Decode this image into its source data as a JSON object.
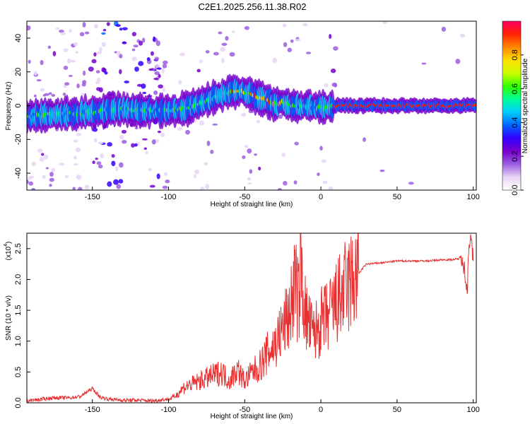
{
  "figure": {
    "title": "C2E1.2025.256.11.38.R02"
  },
  "chart_data": [
    {
      "type": "heatmap",
      "xlabel": "Height of straight line (km)",
      "ylabel": "Frequency (Hz)",
      "xlim": [
        -193,
        102
      ],
      "ylim": [
        -50,
        50
      ],
      "xticks": [
        -150,
        -100,
        -50,
        0,
        50,
        100
      ],
      "yticks": [
        -40,
        -20,
        0,
        20,
        40
      ],
      "colorbar": {
        "label": "Normalized spectral amplitude",
        "range": [
          0,
          1
        ],
        "ticks": [
          "0.0",
          "0.2",
          "0.4",
          "0.6",
          "0.8"
        ],
        "colors": [
          "#ffffff",
          "#e8d5f5",
          "#9b5de0",
          "#7700cc",
          "#3300ff",
          "#0066ff",
          "#00ccff",
          "#00ff99",
          "#33ff00",
          "#ccff00",
          "#ffdd00",
          "#ff8800",
          "#ff2200",
          "#ff0066"
        ]
      },
      "ridge": {
        "x": [
          -193,
          -170,
          -150,
          -135,
          -120,
          -100,
          -90,
          -75,
          -60,
          -52,
          -45,
          -38,
          -30,
          -25,
          -20,
          -10,
          -5,
          0,
          5,
          10,
          100
        ],
        "frequency": [
          -6,
          -5,
          -4,
          -2,
          -3,
          -3,
          -2,
          3,
          8,
          9,
          6,
          4,
          1,
          2,
          0,
          0,
          -1,
          -1,
          -1,
          0,
          0
        ]
      }
    },
    {
      "type": "line",
      "xlabel": "Height of straight line (km)",
      "ylabel": "SNR (10 * v/v)",
      "y_exponent_label": "(x10",
      "y_exponent": "4",
      "xlim": [
        -193,
        102
      ],
      "ylim": [
        0,
        2.75
      ],
      "xticks": [
        -150,
        -100,
        -50,
        0,
        50,
        100
      ],
      "yticks": [
        "0.0",
        "0.5",
        "1.0",
        "1.5",
        "2.0",
        "2.5"
      ],
      "series": [
        {
          "color": "#e83030",
          "x": [
            -193,
            -185,
            -175,
            -165,
            -158,
            -150,
            -145,
            -140,
            -130,
            -120,
            -110,
            -100,
            -95,
            -90,
            -85,
            -80,
            -75,
            -70,
            -65,
            -60,
            -55,
            -50,
            -45,
            -40,
            -35,
            -30,
            -25,
            -20,
            -17,
            -15,
            -13,
            -10,
            -5,
            0,
            5,
            10,
            15,
            20,
            25,
            28,
            30,
            40,
            50,
            60,
            70,
            80,
            85,
            90,
            93,
            95,
            96,
            97,
            98,
            100
          ],
          "y": [
            0.02,
            0.04,
            0.07,
            0.07,
            0.09,
            0.22,
            0.08,
            0.05,
            0.03,
            0.03,
            0.02,
            0.05,
            0.12,
            0.25,
            0.3,
            0.35,
            0.4,
            0.45,
            0.5,
            0.35,
            0.55,
            0.35,
            0.5,
            0.6,
            0.8,
            0.95,
            1.2,
            1.5,
            2.0,
            1.6,
            2.2,
            1.4,
            1.1,
            1.3,
            1.4,
            1.6,
            1.8,
            1.95,
            2.1,
            2.2,
            2.25,
            2.27,
            2.3,
            2.3,
            2.3,
            2.32,
            2.32,
            2.33,
            2.4,
            2.0,
            1.75,
            2.55,
            2.7,
            2.3
          ]
        }
      ]
    }
  ]
}
